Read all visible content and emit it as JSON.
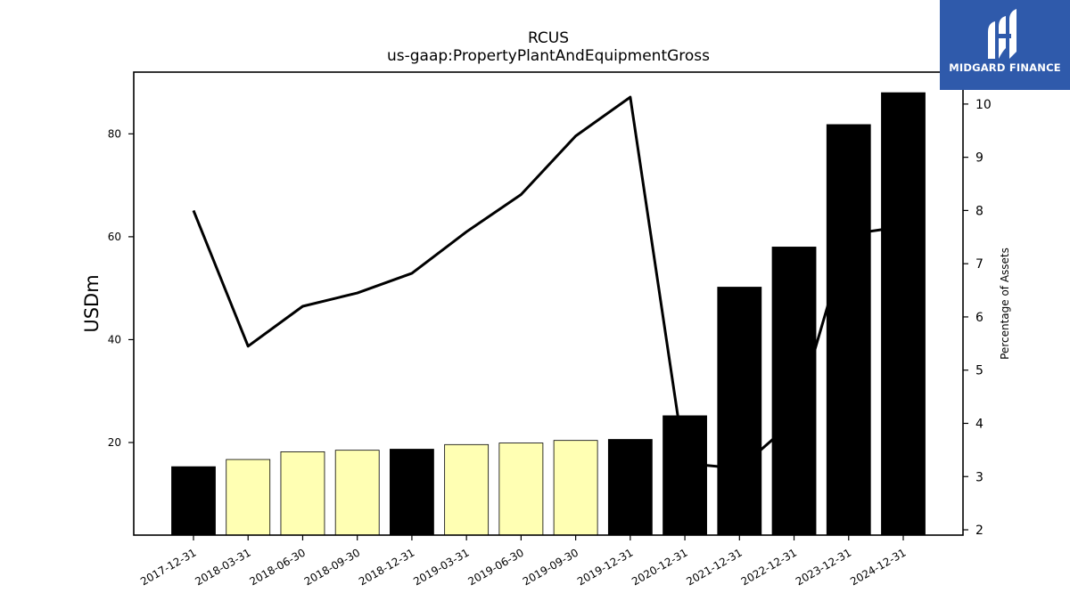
{
  "chart_data": {
    "type": "bar",
    "title": "RCUS",
    "subtitle": "us-gaap:PropertyPlantAndEquipmentGross",
    "ylabel": "USDm",
    "y2label": "Percentage of Assets",
    "categories": [
      "2017-12-31",
      "2018-03-31",
      "2018-06-30",
      "2018-09-30",
      "2018-12-31",
      "2019-03-31",
      "2019-06-30",
      "2019-09-30",
      "2019-12-31",
      "2020-12-31",
      "2021-12-31",
      "2022-12-31",
      "2023-12-31",
      "2024-12-31"
    ],
    "series": [
      {
        "type": "bar",
        "values": [
          15.3,
          16.7,
          18.2,
          18.5,
          18.7,
          19.6,
          19.9,
          20.4,
          20.6,
          25.2,
          50.2,
          58.0,
          81.8,
          88.0
        ],
        "colors": [
          "#000000",
          "#ffffb3",
          "#ffffb3",
          "#ffffb3",
          "#000000",
          "#ffffb3",
          "#ffffb3",
          "#ffffb3",
          "#000000",
          "#000000",
          "#000000",
          "#000000",
          "#000000",
          "#000000"
        ]
      },
      {
        "type": "line",
        "axis": "right",
        "values": [
          8.0,
          5.45,
          6.2,
          6.45,
          6.82,
          7.6,
          8.3,
          9.4,
          10.13,
          3.25,
          3.15,
          4.05,
          7.55,
          7.7
        ]
      }
    ],
    "ylim": [
      2,
      92
    ],
    "y2lim": [
      1.9,
      10.6
    ],
    "yticks": [
      20,
      40,
      60,
      80
    ],
    "y2ticks": [
      2,
      3,
      4,
      5,
      6,
      7,
      8,
      9,
      10
    ],
    "grid": false
  },
  "logo": {
    "text": "MIDGARD FINANCE",
    "color": "#2f5aab"
  }
}
